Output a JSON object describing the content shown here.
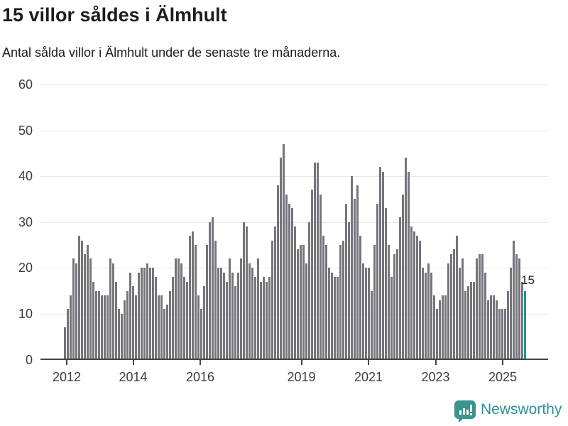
{
  "header": {
    "title": "15 villor såldes i Älmhult",
    "subtitle": "Antal sålda villor i Älmhult under de senaste tre månaderna."
  },
  "chart_data": {
    "type": "bar",
    "title": "15 villor såldes i Älmhult",
    "subtitle": "Antal sålda villor i Älmhult under de senaste tre månaderna.",
    "ylim": [
      0,
      60
    ],
    "y_ticks": [
      0,
      10,
      20,
      30,
      40,
      50,
      60
    ],
    "x_tick_labels": [
      "2012",
      "2014",
      "2016",
      "2019",
      "2021",
      "2023",
      "2025"
    ],
    "grid": "horizontal",
    "bar_color": "#75757b",
    "highlight_color": "#17999b",
    "highlight": {
      "label": "15",
      "value": 15
    },
    "x_start": "2012-01",
    "values": [
      7,
      11,
      14,
      22,
      21,
      27,
      26,
      23,
      25,
      22,
      17,
      15,
      15,
      14,
      14,
      14,
      22,
      21,
      17,
      11,
      10,
      13,
      15,
      19,
      16,
      14,
      19,
      20,
      20,
      21,
      20,
      20,
      18,
      14,
      14,
      11,
      12,
      15,
      18,
      22,
      22,
      21,
      18,
      17,
      27,
      28,
      25,
      14,
      11,
      16,
      25,
      30,
      31,
      26,
      20,
      20,
      19,
      17,
      22,
      19,
      16,
      19,
      22,
      30,
      29,
      21,
      20,
      18,
      22,
      17,
      18,
      17,
      18,
      26,
      29,
      38,
      44,
      47,
      36,
      34,
      33,
      29,
      24,
      25,
      25,
      21,
      30,
      37,
      43,
      43,
      36,
      27,
      25,
      20,
      19,
      18,
      18,
      25,
      26,
      34,
      30,
      40,
      35,
      38,
      27,
      21,
      20,
      20,
      15,
      25,
      34,
      42,
      41,
      33,
      25,
      18,
      23,
      24,
      31,
      36,
      44,
      41,
      29,
      28,
      27,
      26,
      20,
      19,
      21,
      19,
      14,
      11,
      13,
      14,
      14,
      21,
      23,
      24,
      27,
      20,
      22,
      15,
      16,
      17,
      17,
      22,
      23,
      23,
      19,
      13,
      14,
      14,
      13,
      11,
      11,
      11,
      15,
      20,
      26,
      23,
      22,
      17,
      15
    ]
  },
  "annotation": {
    "last_value_label": "15"
  },
  "footer": {
    "brand": "Newsworthy"
  },
  "colors": {
    "bar": "#75757b",
    "highlight": "#17999b",
    "brand_teal": "#2e938e",
    "axis_text": "#3c3c3c",
    "gridline": "#e7e7e7",
    "text": "#1d1d1b"
  }
}
